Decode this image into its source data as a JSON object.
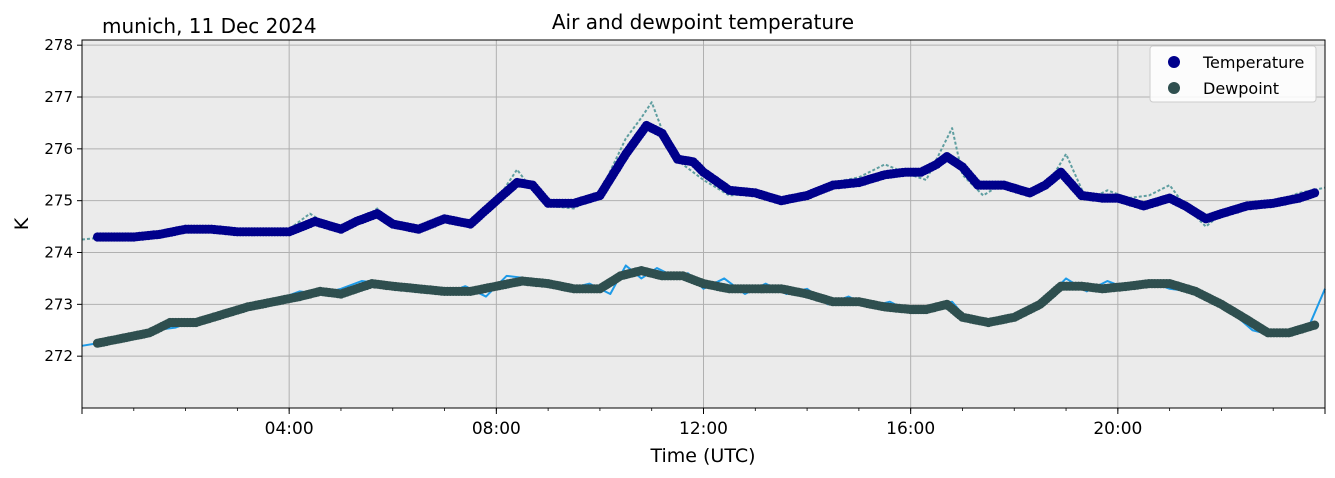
{
  "chart_data": {
    "type": "line",
    "title": "Air and dewpoint temperature",
    "subtitle": "munich, 11 Dec 2024",
    "xlabel": "Time (UTC)",
    "ylabel": "K",
    "x_unit": "hours",
    "xlim": [
      0,
      24
    ],
    "ylim": [
      271.0,
      278.1
    ],
    "x_ticks": [
      {
        "value": 4,
        "label": "04:00"
      },
      {
        "value": 8,
        "label": "08:00"
      },
      {
        "value": 12,
        "label": "12:00"
      },
      {
        "value": 16,
        "label": "16:00"
      },
      {
        "value": 20,
        "label": "20:00"
      }
    ],
    "y_ticks": [
      272,
      273,
      274,
      275,
      276,
      277,
      278
    ],
    "grid": true,
    "background_color": "#ebebeb",
    "legend_position": "top-right",
    "series": [
      {
        "name": "Temperature",
        "style": "markers",
        "color": "#00008b",
        "x": [
          0.3,
          1.0,
          1.5,
          2.0,
          2.5,
          3.0,
          3.5,
          4.0,
          4.5,
          5.0,
          5.3,
          5.7,
          6.0,
          6.5,
          7.0,
          7.5,
          8.0,
          8.4,
          8.7,
          9.0,
          9.5,
          10.0,
          10.5,
          10.9,
          11.2,
          11.5,
          11.8,
          12.0,
          12.5,
          13.0,
          13.5,
          14.0,
          14.5,
          15.0,
          15.5,
          15.9,
          16.2,
          16.5,
          16.7,
          17.0,
          17.3,
          17.8,
          18.3,
          18.6,
          18.9,
          19.3,
          19.7,
          20.0,
          20.5,
          21.0,
          21.3,
          21.7,
          22.0,
          22.5,
          23.0,
          23.5,
          23.8
        ],
        "y": [
          274.3,
          274.3,
          274.35,
          274.45,
          274.45,
          274.4,
          274.4,
          274.4,
          274.6,
          274.45,
          274.6,
          274.75,
          274.55,
          274.45,
          274.65,
          274.55,
          275.0,
          275.35,
          275.3,
          274.95,
          274.95,
          275.1,
          275.9,
          276.45,
          276.3,
          275.8,
          275.75,
          275.55,
          275.2,
          275.15,
          275.0,
          275.1,
          275.3,
          275.35,
          275.5,
          275.55,
          275.55,
          275.7,
          275.85,
          275.65,
          275.3,
          275.3,
          275.15,
          275.3,
          275.55,
          275.1,
          275.05,
          275.05,
          274.9,
          275.05,
          274.9,
          274.65,
          274.75,
          274.9,
          274.95,
          275.05,
          275.15
        ]
      },
      {
        "name": "Dewpoint",
        "style": "markers",
        "color": "#2f4f4f",
        "x": [
          0.3,
          0.8,
          1.3,
          1.7,
          2.2,
          2.7,
          3.2,
          3.7,
          4.2,
          4.6,
          5.0,
          5.6,
          6.0,
          6.5,
          7.0,
          7.5,
          8.0,
          8.5,
          9.0,
          9.5,
          10.0,
          10.4,
          10.8,
          11.2,
          11.6,
          12.0,
          12.5,
          13.0,
          13.5,
          14.0,
          14.5,
          15.0,
          15.5,
          16.0,
          16.3,
          16.7,
          17.0,
          17.5,
          18.0,
          18.5,
          18.9,
          19.3,
          19.7,
          20.2,
          20.6,
          21.0,
          21.5,
          22.0,
          22.5,
          22.9,
          23.3,
          23.8
        ],
        "y": [
          272.25,
          272.35,
          272.45,
          272.65,
          272.65,
          272.8,
          272.95,
          273.05,
          273.15,
          273.25,
          273.2,
          273.4,
          273.35,
          273.3,
          273.25,
          273.25,
          273.35,
          273.45,
          273.4,
          273.3,
          273.3,
          273.55,
          273.65,
          273.55,
          273.55,
          273.4,
          273.3,
          273.3,
          273.3,
          273.2,
          273.05,
          273.05,
          272.95,
          272.9,
          272.9,
          273.0,
          272.75,
          272.65,
          272.75,
          273.0,
          273.35,
          273.35,
          273.3,
          273.35,
          273.4,
          273.4,
          273.25,
          273.0,
          272.7,
          272.45,
          272.45,
          272.6
        ]
      },
      {
        "name": "",
        "style": "thin-line",
        "color": "#5f9ea0",
        "x": [
          0.0,
          0.5,
          1.0,
          1.5,
          2.0,
          2.5,
          3.0,
          3.5,
          4.0,
          4.4,
          4.8,
          5.2,
          5.7,
          6.0,
          6.5,
          7.0,
          7.5,
          8.0,
          8.4,
          8.7,
          9.0,
          9.5,
          10.0,
          10.5,
          10.8,
          11.0,
          11.3,
          11.6,
          12.0,
          12.5,
          13.0,
          13.5,
          14.0,
          14.5,
          15.0,
          15.5,
          16.0,
          16.3,
          16.6,
          16.8,
          17.0,
          17.4,
          17.8,
          18.3,
          18.7,
          19.0,
          19.4,
          19.8,
          20.2,
          20.6,
          21.0,
          21.3,
          21.7,
          22.0,
          22.5,
          23.0,
          23.5,
          24.0
        ],
        "y": [
          274.25,
          274.3,
          274.35,
          274.35,
          274.45,
          274.5,
          274.4,
          274.35,
          274.45,
          274.75,
          274.5,
          274.5,
          274.85,
          274.55,
          274.45,
          274.7,
          274.55,
          275.0,
          275.6,
          275.2,
          274.9,
          274.85,
          275.15,
          276.2,
          276.6,
          276.9,
          276.1,
          275.7,
          275.4,
          275.1,
          275.15,
          274.95,
          275.15,
          275.35,
          275.45,
          275.7,
          275.5,
          275.4,
          276.0,
          276.4,
          275.5,
          275.1,
          275.35,
          275.2,
          275.4,
          275.9,
          275.0,
          275.2,
          275.05,
          275.1,
          275.3,
          274.9,
          274.5,
          274.75,
          274.85,
          274.95,
          275.15,
          275.25
        ]
      },
      {
        "name": "",
        "style": "thin-line",
        "color": "#1e9be8",
        "x": [
          0.0,
          0.3,
          0.7,
          1.0,
          1.4,
          1.8,
          2.2,
          2.6,
          3.0,
          3.4,
          3.8,
          4.2,
          4.6,
          5.0,
          5.4,
          5.8,
          6.2,
          6.6,
          7.0,
          7.4,
          7.8,
          8.2,
          8.6,
          9.0,
          9.4,
          9.8,
          10.2,
          10.5,
          10.8,
          11.1,
          11.4,
          11.7,
          12.0,
          12.4,
          12.8,
          13.2,
          13.6,
          14.0,
          14.4,
          14.8,
          15.2,
          15.6,
          16.0,
          16.4,
          16.8,
          17.1,
          17.5,
          17.9,
          18.3,
          18.7,
          19.0,
          19.4,
          19.8,
          20.2,
          20.6,
          21.0,
          21.4,
          21.8,
          22.2,
          22.6,
          23.0,
          23.4,
          23.7,
          24.0
        ],
        "y": [
          272.2,
          272.25,
          272.3,
          272.35,
          272.5,
          272.55,
          272.7,
          272.75,
          272.95,
          273.0,
          273.1,
          273.25,
          273.2,
          273.3,
          273.45,
          273.4,
          273.3,
          273.35,
          273.2,
          273.35,
          273.15,
          273.55,
          273.5,
          273.45,
          273.3,
          273.4,
          273.2,
          273.75,
          273.5,
          273.7,
          273.55,
          273.6,
          273.3,
          273.5,
          273.2,
          273.4,
          273.2,
          273.3,
          273.0,
          273.15,
          272.95,
          273.05,
          272.85,
          272.95,
          273.05,
          272.7,
          272.6,
          272.75,
          272.85,
          273.2,
          273.5,
          273.25,
          273.45,
          273.3,
          273.45,
          273.3,
          273.25,
          273.1,
          272.85,
          272.5,
          272.4,
          272.45,
          272.6,
          273.3
        ]
      }
    ]
  }
}
